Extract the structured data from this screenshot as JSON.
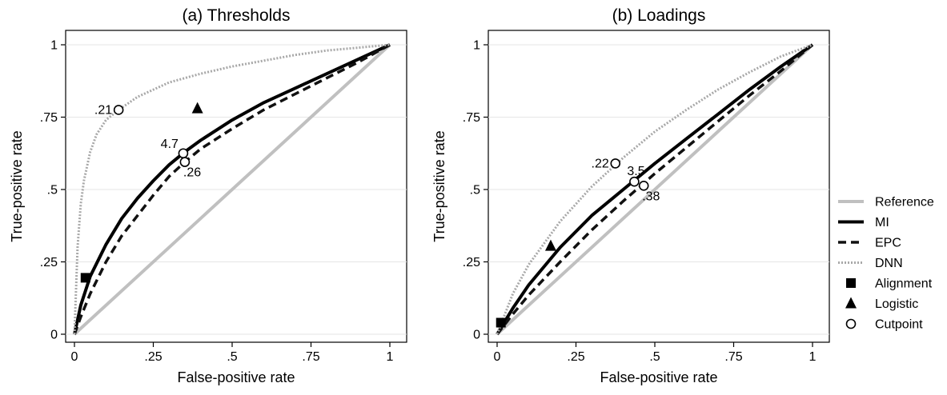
{
  "legend": [
    {
      "key": "reference",
      "label": "Reference",
      "kind": "line",
      "color": "#c0c0c0",
      "dash": "none",
      "width": 4
    },
    {
      "key": "mi",
      "label": "MI",
      "kind": "line",
      "color": "#000000",
      "dash": "none",
      "width": 4
    },
    {
      "key": "epc",
      "label": "EPC",
      "kind": "line",
      "color": "#111111",
      "dash": "10,6",
      "width": 3.5
    },
    {
      "key": "dnn",
      "label": "DNN",
      "kind": "line",
      "color": "#a8a8a8",
      "dash": "2,2",
      "width": 3
    },
    {
      "key": "alignment",
      "label": "Alignment",
      "kind": "square"
    },
    {
      "key": "logistic",
      "label": "Logistic",
      "kind": "triangle"
    },
    {
      "key": "cutpoint",
      "label": "Cutpoint",
      "kind": "circle"
    }
  ],
  "legend_position": "right",
  "chart_data": [
    {
      "type": "line",
      "title": "(a) Thresholds",
      "xlabel": "False-positive rate",
      "ylabel": "True-positive rate",
      "xlim": [
        0,
        1
      ],
      "ylim": [
        0,
        1
      ],
      "xticks": [
        {
          "v": 0,
          "label": "0"
        },
        {
          "v": 0.25,
          "label": ".25"
        },
        {
          "v": 0.5,
          "label": ".5"
        },
        {
          "v": 0.75,
          "label": ".75"
        },
        {
          "v": 1,
          "label": "1"
        }
      ],
      "yticks": [
        {
          "v": 0,
          "label": "0"
        },
        {
          "v": 0.25,
          "label": ".25"
        },
        {
          "v": 0.5,
          "label": ".5"
        },
        {
          "v": 0.75,
          "label": ".75"
        },
        {
          "v": 1,
          "label": "1"
        }
      ],
      "grid": "horizontal",
      "series": [
        {
          "name": "Reference",
          "key": "reference",
          "x": [
            0,
            1
          ],
          "y": [
            0,
            1
          ]
        },
        {
          "name": "MI",
          "key": "mi",
          "x": [
            0,
            0.02,
            0.05,
            0.1,
            0.15,
            0.2,
            0.25,
            0.3,
            0.35,
            0.4,
            0.5,
            0.6,
            0.7,
            0.8,
            0.9,
            1
          ],
          "y": [
            0,
            0.1,
            0.2,
            0.31,
            0.4,
            0.47,
            0.53,
            0.585,
            0.63,
            0.67,
            0.74,
            0.8,
            0.85,
            0.9,
            0.95,
            1
          ]
        },
        {
          "name": "EPC",
          "key": "epc",
          "x": [
            0,
            0.02,
            0.05,
            0.1,
            0.15,
            0.2,
            0.25,
            0.3,
            0.35,
            0.4,
            0.5,
            0.6,
            0.7,
            0.8,
            0.9,
            1
          ],
          "y": [
            0,
            0.06,
            0.14,
            0.25,
            0.34,
            0.41,
            0.48,
            0.545,
            0.595,
            0.64,
            0.71,
            0.775,
            0.83,
            0.885,
            0.94,
            1
          ]
        },
        {
          "name": "DNN",
          "key": "dnn",
          "x": [
            0,
            0.01,
            0.02,
            0.03,
            0.05,
            0.07,
            0.1,
            0.14,
            0.2,
            0.3,
            0.4,
            0.5,
            0.6,
            0.7,
            0.8,
            0.9,
            1
          ],
          "y": [
            0,
            0.3,
            0.45,
            0.53,
            0.63,
            0.69,
            0.74,
            0.775,
            0.82,
            0.87,
            0.9,
            0.925,
            0.945,
            0.965,
            0.98,
            0.99,
            1
          ]
        }
      ],
      "markers": [
        {
          "key": "alignment",
          "x": 0.035,
          "y": 0.195
        },
        {
          "key": "logistic",
          "x": 0.39,
          "y": 0.78
        }
      ],
      "cutpoints": [
        {
          "x": 0.14,
          "y": 0.775,
          "label": ".21",
          "pos": "left"
        },
        {
          "x": 0.345,
          "y": 0.625,
          "label": "4.7",
          "pos": "above-left"
        },
        {
          "x": 0.35,
          "y": 0.595,
          "label": ".26",
          "pos": "below-right"
        }
      ]
    },
    {
      "type": "line",
      "title": "(b) Loadings",
      "xlabel": "False-positive rate",
      "ylabel": "True-positive rate",
      "xlim": [
        0,
        1
      ],
      "ylim": [
        0,
        1
      ],
      "xticks": [
        {
          "v": 0,
          "label": "0"
        },
        {
          "v": 0.25,
          "label": ".25"
        },
        {
          "v": 0.5,
          "label": ".5"
        },
        {
          "v": 0.75,
          "label": ".75"
        },
        {
          "v": 1,
          "label": "1"
        }
      ],
      "yticks": [
        {
          "v": 0,
          "label": "0"
        },
        {
          "v": 0.25,
          "label": ".25"
        },
        {
          "v": 0.5,
          "label": ".5"
        },
        {
          "v": 0.75,
          "label": ".75"
        },
        {
          "v": 1,
          "label": "1"
        }
      ],
      "grid": "horizontal",
      "series": [
        {
          "name": "Reference",
          "key": "reference",
          "x": [
            0,
            1
          ],
          "y": [
            0,
            1
          ]
        },
        {
          "name": "MI",
          "key": "mi",
          "x": [
            0,
            0.05,
            0.1,
            0.2,
            0.3,
            0.4,
            0.5,
            0.6,
            0.7,
            0.8,
            0.9,
            1
          ],
          "y": [
            0,
            0.09,
            0.17,
            0.3,
            0.41,
            0.5,
            0.59,
            0.675,
            0.76,
            0.845,
            0.925,
            1
          ]
        },
        {
          "name": "EPC",
          "key": "epc",
          "x": [
            0,
            0.05,
            0.1,
            0.2,
            0.3,
            0.4,
            0.5,
            0.6,
            0.7,
            0.8,
            0.9,
            1
          ],
          "y": [
            0,
            0.07,
            0.135,
            0.25,
            0.36,
            0.46,
            0.555,
            0.645,
            0.735,
            0.825,
            0.91,
            1
          ]
        },
        {
          "name": "DNN",
          "key": "dnn",
          "x": [
            0,
            0.05,
            0.1,
            0.2,
            0.3,
            0.4,
            0.5,
            0.6,
            0.7,
            0.8,
            0.9,
            1
          ],
          "y": [
            0,
            0.14,
            0.24,
            0.39,
            0.51,
            0.61,
            0.7,
            0.775,
            0.845,
            0.905,
            0.96,
            1
          ]
        }
      ],
      "markers": [
        {
          "key": "alignment",
          "x": 0.012,
          "y": 0.04
        },
        {
          "key": "logistic",
          "x": 0.17,
          "y": 0.305
        }
      ],
      "cutpoints": [
        {
          "x": 0.375,
          "y": 0.59,
          "label": ".22",
          "pos": "left"
        },
        {
          "x": 0.435,
          "y": 0.527,
          "label": "3.5",
          "pos": "above-right"
        },
        {
          "x": 0.465,
          "y": 0.513,
          "label": ".38",
          "pos": "below-right"
        }
      ]
    }
  ]
}
